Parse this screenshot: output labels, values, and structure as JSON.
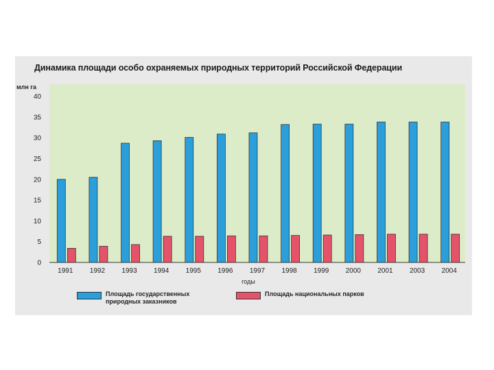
{
  "chart_data": {
    "type": "bar",
    "title": "Динамика площади особо охраняемых природных территорий Российской Федерации",
    "ylabel": "млн га",
    "xlabel": "годы",
    "ylim": [
      0,
      40
    ],
    "yticks": [
      0,
      5,
      10,
      15,
      20,
      25,
      30,
      35,
      40
    ],
    "grid": false,
    "legend_position": "bottom",
    "categories": [
      "1991",
      "1992",
      "1993",
      "1994",
      "1995",
      "1996",
      "1997",
      "1998",
      "1999",
      "2000",
      "2001",
      "2003",
      "2004"
    ],
    "series": [
      {
        "name": "Площадь государственных природных заказников",
        "color": "#2a9fdc",
        "values": [
          20,
          20.5,
          28.7,
          29.3,
          30.1,
          30.9,
          31.2,
          33.2,
          33.3,
          33.3,
          33.8,
          33.8,
          33.8
        ]
      },
      {
        "name": "Площадь национальных парков",
        "color": "#e5536a",
        "values": [
          3.4,
          3.9,
          4.3,
          6.3,
          6.3,
          6.4,
          6.4,
          6.5,
          6.6,
          6.7,
          6.8,
          6.8,
          6.8
        ]
      }
    ]
  }
}
